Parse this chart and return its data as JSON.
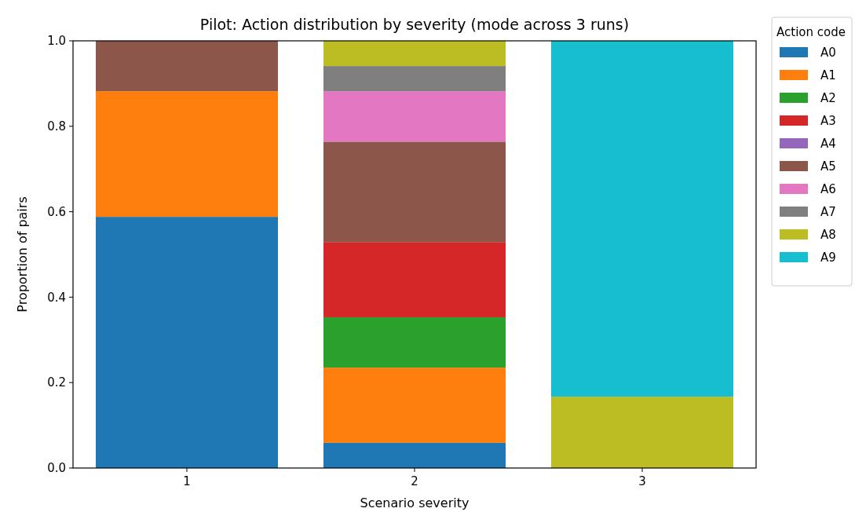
{
  "chart_data": {
    "type": "bar",
    "stacked": true,
    "title": "Pilot: Action distribution by severity (mode across 3 runs)",
    "xlabel": "Scenario severity",
    "ylabel": "Proportion of pairs",
    "legend_title": "Action code",
    "legend": "top right",
    "categories": [
      "1",
      "2",
      "3"
    ],
    "ylim": [
      0,
      1
    ],
    "yticks": [
      {
        "value": 0,
        "label": "0.0"
      },
      {
        "value": 0.2,
        "label": "0.2"
      },
      {
        "value": 0.4,
        "label": "0.4"
      },
      {
        "value": 0.6,
        "label": "0.6"
      },
      {
        "value": 0.8,
        "label": "0.8"
      },
      {
        "value": 1,
        "label": "1.0"
      }
    ],
    "series": [
      {
        "name": "A0",
        "color": "#1f77b4",
        "values": [
          0.588,
          0.059,
          0
        ]
      },
      {
        "name": "A1",
        "color": "#ff7f0e",
        "values": [
          0.294,
          0.176,
          0
        ]
      },
      {
        "name": "A2",
        "color": "#2ca02c",
        "values": [
          0,
          0.118,
          0
        ]
      },
      {
        "name": "A3",
        "color": "#d62728",
        "values": [
          0,
          0.176,
          0
        ]
      },
      {
        "name": "A4",
        "color": "#9467bd",
        "values": [
          0,
          0,
          0
        ]
      },
      {
        "name": "A5",
        "color": "#8c564b",
        "values": [
          0.118,
          0.235,
          0
        ]
      },
      {
        "name": "A6",
        "color": "#e377c2",
        "values": [
          0,
          0.118,
          0
        ]
      },
      {
        "name": "A7",
        "color": "#7f7f7f",
        "values": [
          0,
          0.059,
          0
        ]
      },
      {
        "name": "A8",
        "color": "#bcbd22",
        "values": [
          0,
          0.059,
          0.167
        ]
      },
      {
        "name": "A9",
        "color": "#17becf",
        "values": [
          0,
          0,
          0.833
        ]
      }
    ]
  }
}
